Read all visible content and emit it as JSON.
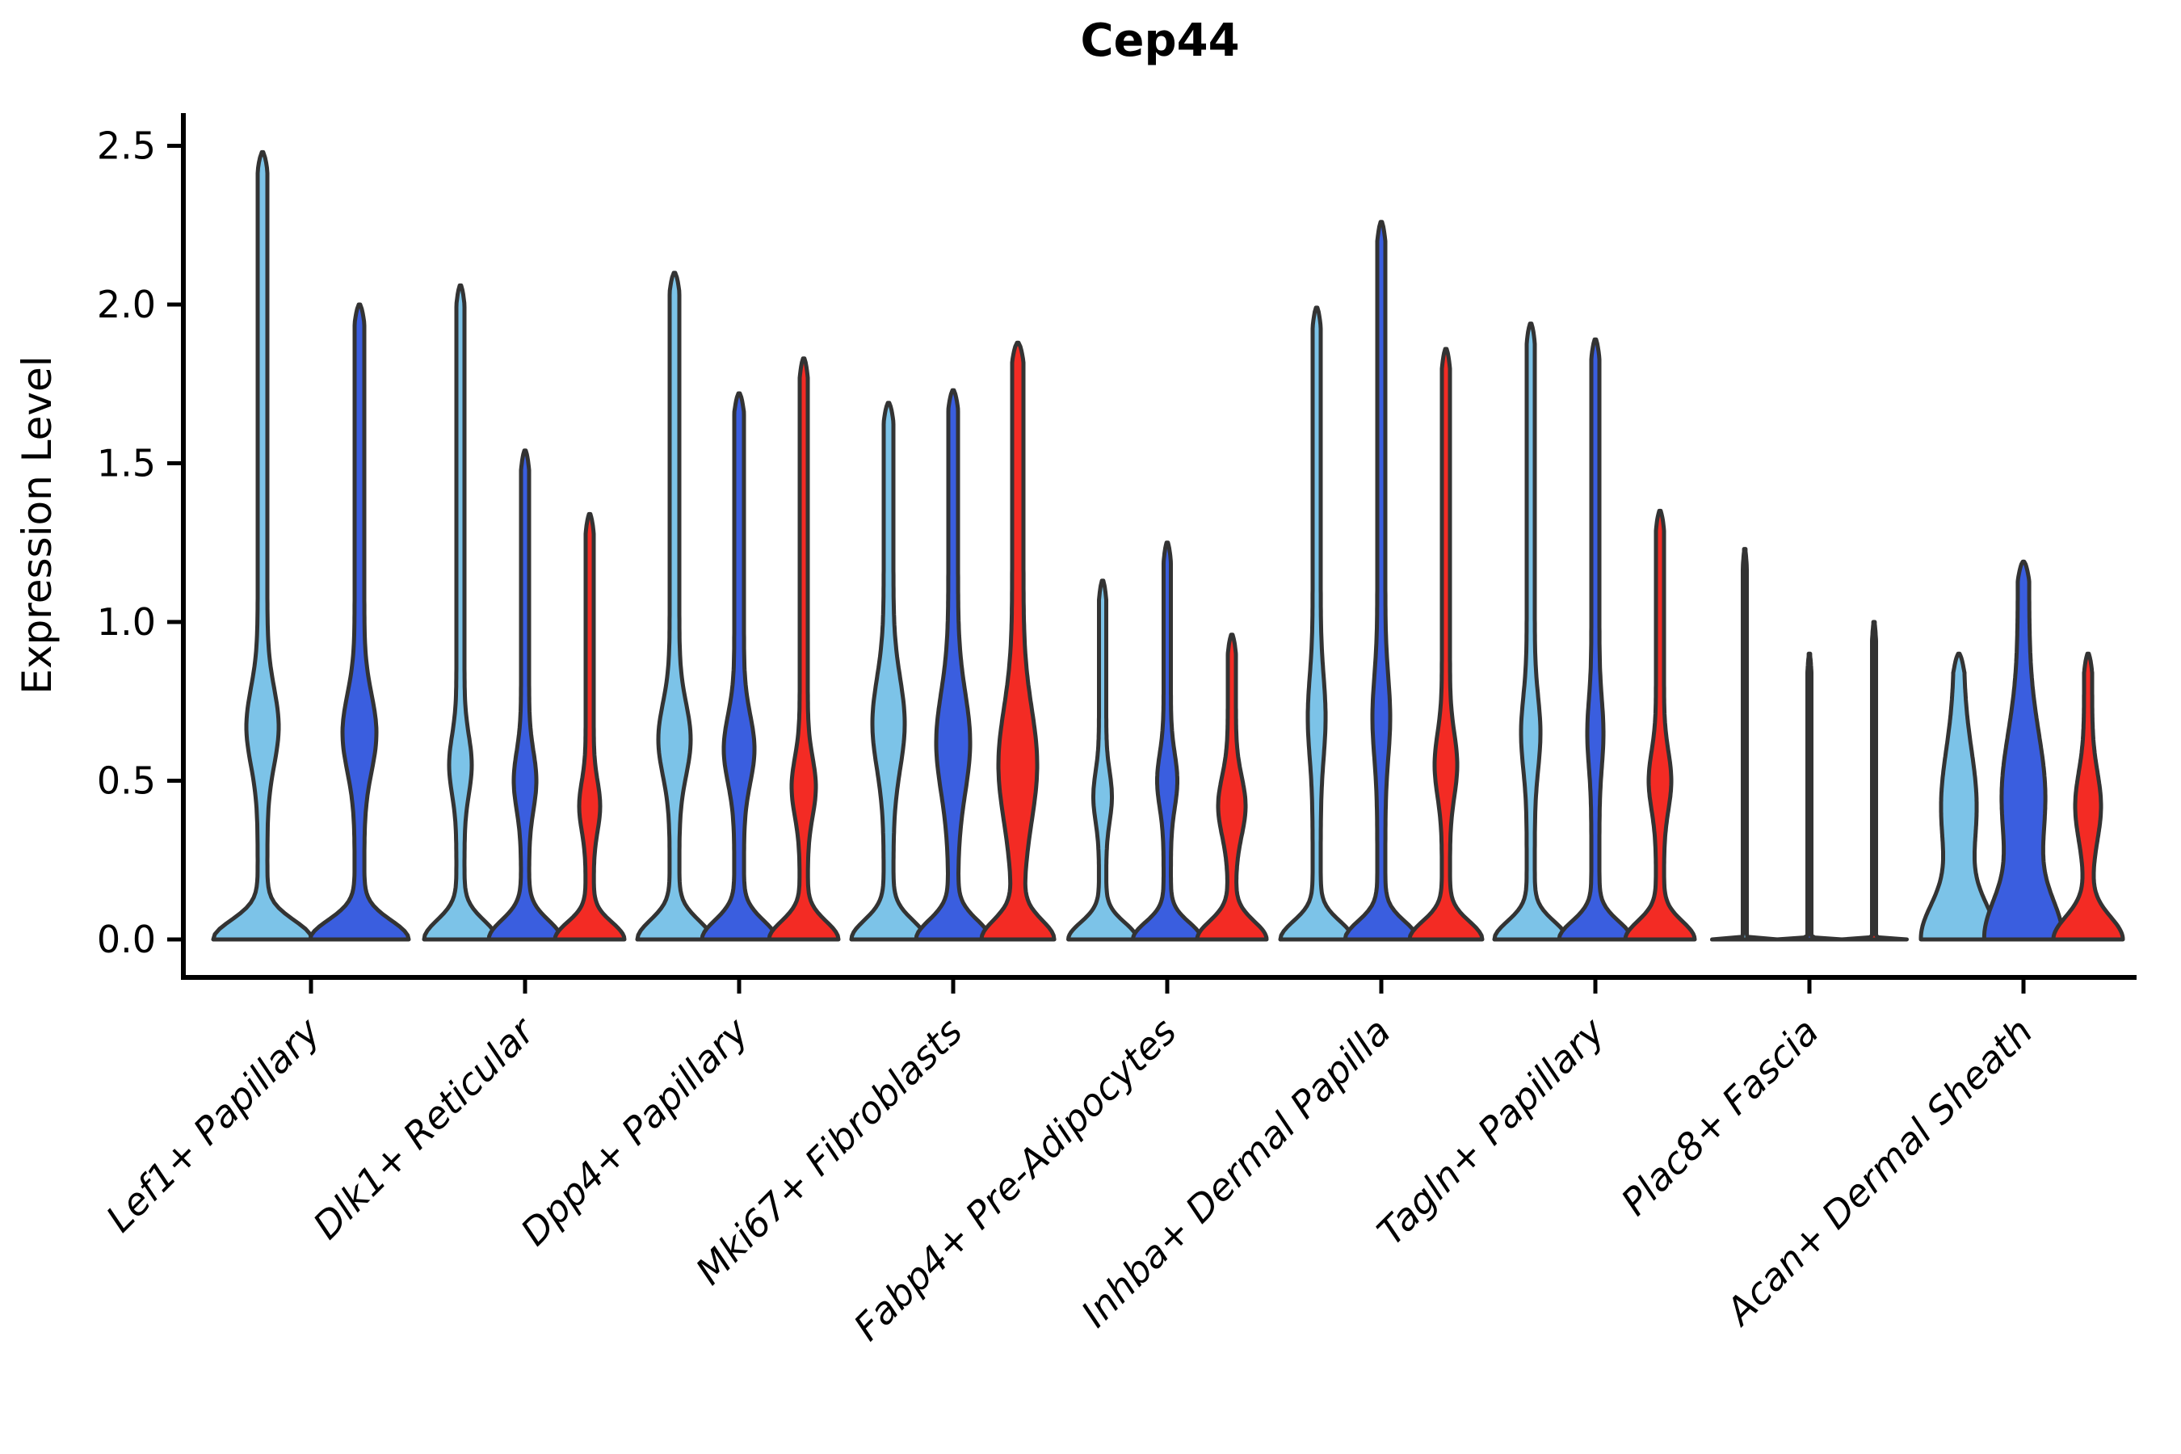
{
  "title": "Cep44",
  "axes": {
    "ylabel": "Expression Level",
    "y_ticks": [
      "0.0",
      "0.5",
      "1.0",
      "1.5",
      "2.0",
      "2.5"
    ],
    "ylim": [
      0,
      2.6
    ]
  },
  "colors": {
    "hues": [
      "#7CC3E8",
      "#3A5EDF",
      "#F32B24"
    ],
    "outline": "#333333",
    "axis": "#000000",
    "background": "#ffffff"
  },
  "chart_data": {
    "type": "violin",
    "title": "Cep44",
    "ylabel": "Expression Level",
    "ylim": [
      0,
      2.6
    ],
    "grid": false,
    "legend": null,
    "categories": [
      "Lef1+ Papillary",
      "Dlk1+ Reticular",
      "Dpp4+ Papillary",
      "Mki67+ Fibroblasts",
      "Fabp4+ Pre-Adipocytes",
      "Inhba+ Dermal Papilla",
      "Tagln+ Papillary",
      "Plac8+ Fascia",
      "Acan+ Dermal Sheath"
    ],
    "series": [
      {
        "name": "hue-1-light-blue",
        "color": "#7CC3E8",
        "max_expression": [
          2.48,
          2.06,
          2.1,
          1.69,
          1.13,
          1.99,
          1.94,
          1.23,
          0.9
        ]
      },
      {
        "name": "hue-2-royal-blue",
        "color": "#3A5EDF",
        "max_expression": [
          2.0,
          1.54,
          1.72,
          1.73,
          1.25,
          2.26,
          1.89,
          0.9,
          1.19
        ]
      },
      {
        "name": "hue-3-red",
        "color": "#F32B24",
        "max_expression": [
          null,
          1.34,
          1.83,
          1.88,
          0.96,
          1.86,
          1.35,
          1.0,
          0.9
        ]
      }
    ],
    "violins": [
      {
        "cat": 0,
        "hue": 0,
        "max": 2.48,
        "base": 55,
        "base_s": 0.085,
        "stem": 6,
        "bulge_c": 0.67,
        "bulge_w": 14,
        "bulge_s": 0.17
      },
      {
        "cat": 0,
        "hue": 1,
        "max": 2.0,
        "base": 55,
        "base_s": 0.085,
        "stem": 6,
        "bulge_c": 0.65,
        "bulge_w": 15,
        "bulge_s": 0.17
      },
      {
        "cat": 1,
        "hue": 0,
        "max": 2.06,
        "base": 40,
        "base_s": 0.085,
        "stem": 5,
        "bulge_c": 0.55,
        "bulge_w": 9,
        "bulge_s": 0.13
      },
      {
        "cat": 1,
        "hue": 1,
        "max": 1.54,
        "base": 40,
        "base_s": 0.085,
        "stem": 5,
        "bulge_c": 0.5,
        "bulge_w": 9,
        "bulge_s": 0.13
      },
      {
        "cat": 1,
        "hue": 2,
        "max": 1.34,
        "base": 38,
        "base_s": 0.075,
        "stem": 5,
        "bulge_c": 0.42,
        "bulge_w": 8,
        "bulge_s": 0.11
      },
      {
        "cat": 2,
        "hue": 0,
        "max": 2.1,
        "base": 40,
        "base_s": 0.085,
        "stem": 6,
        "bulge_c": 0.63,
        "bulge_w": 14,
        "bulge_s": 0.16
      },
      {
        "cat": 2,
        "hue": 1,
        "max": 1.72,
        "base": 40,
        "base_s": 0.085,
        "stem": 6,
        "bulge_c": 0.6,
        "bulge_w": 13,
        "bulge_s": 0.15
      },
      {
        "cat": 2,
        "hue": 2,
        "max": 1.83,
        "base": 38,
        "base_s": 0.08,
        "stem": 5,
        "bulge_c": 0.48,
        "bulge_w": 10,
        "bulge_s": 0.13
      },
      {
        "cat": 3,
        "hue": 0,
        "max": 1.69,
        "base": 40,
        "base_s": 0.085,
        "stem": 6,
        "bulge_c": 0.68,
        "bulge_w": 14,
        "bulge_s": 0.2
      },
      {
        "cat": 3,
        "hue": 1,
        "max": 1.73,
        "base": 40,
        "base_s": 0.085,
        "stem": 6,
        "bulge_c": 0.62,
        "bulge_w": 15,
        "bulge_s": 0.22
      },
      {
        "cat": 3,
        "hue": 2,
        "max": 1.88,
        "base": 38,
        "base_s": 0.085,
        "stem": 7,
        "bulge_c": 0.55,
        "bulge_w": 17,
        "bulge_s": 0.25
      },
      {
        "cat": 4,
        "hue": 0,
        "max": 1.13,
        "base": 38,
        "base_s": 0.075,
        "stem": 4.5,
        "bulge_c": 0.45,
        "bulge_w": 7,
        "bulge_s": 0.11
      },
      {
        "cat": 4,
        "hue": 1,
        "max": 1.25,
        "base": 38,
        "base_s": 0.075,
        "stem": 4.5,
        "bulge_c": 0.5,
        "bulge_w": 8,
        "bulge_s": 0.12
      },
      {
        "cat": 4,
        "hue": 2,
        "max": 0.96,
        "base": 38,
        "base_s": 0.08,
        "stem": 5,
        "bulge_c": 0.42,
        "bulge_w": 12,
        "bulge_s": 0.13
      },
      {
        "cat": 5,
        "hue": 0,
        "max": 1.99,
        "base": 40,
        "base_s": 0.08,
        "stem": 5,
        "bulge_c": 0.7,
        "bulge_w": 6,
        "bulge_s": 0.18
      },
      {
        "cat": 5,
        "hue": 1,
        "max": 2.26,
        "base": 40,
        "base_s": 0.08,
        "stem": 5,
        "bulge_c": 0.7,
        "bulge_w": 6,
        "bulge_s": 0.18
      },
      {
        "cat": 5,
        "hue": 2,
        "max": 1.86,
        "base": 40,
        "base_s": 0.08,
        "stem": 5,
        "bulge_c": 0.55,
        "bulge_w": 9,
        "bulge_s": 0.14
      },
      {
        "cat": 6,
        "hue": 0,
        "max": 1.94,
        "base": 40,
        "base_s": 0.08,
        "stem": 5,
        "bulge_c": 0.65,
        "bulge_w": 7,
        "bulge_s": 0.16
      },
      {
        "cat": 6,
        "hue": 1,
        "max": 1.89,
        "base": 40,
        "base_s": 0.08,
        "stem": 5,
        "bulge_c": 0.65,
        "bulge_w": 5,
        "bulge_s": 0.15
      },
      {
        "cat": 6,
        "hue": 2,
        "max": 1.35,
        "base": 38,
        "base_s": 0.08,
        "stem": 5,
        "bulge_c": 0.5,
        "bulge_w": 9,
        "bulge_s": 0.13
      },
      {
        "cat": 7,
        "hue": 0,
        "max": 1.23,
        "base": 38,
        "base_s": 0.004,
        "stem": 2.5,
        "bulge_c": 0,
        "bulge_w": 0,
        "bulge_s": 1
      },
      {
        "cat": 7,
        "hue": 1,
        "max": 0.9,
        "base": 38,
        "base_s": 0.004,
        "stem": 2.5,
        "bulge_c": 0,
        "bulge_w": 0,
        "bulge_s": 1
      },
      {
        "cat": 7,
        "hue": 2,
        "max": 1.0,
        "base": 38,
        "base_s": 0.004,
        "stem": 2.5,
        "bulge_c": 0,
        "bulge_w": 0,
        "bulge_s": 1
      },
      {
        "cat": 8,
        "hue": 0,
        "max": 0.9,
        "base": 40,
        "base_s": 0.16,
        "stem": 6,
        "bulge_c": 0.42,
        "bulge_w": 16,
        "bulge_s": 0.25
      },
      {
        "cat": 8,
        "hue": 1,
        "max": 1.19,
        "base": 40,
        "base_s": 0.18,
        "stem": 7,
        "bulge_c": 0.45,
        "bulge_w": 20,
        "bulge_s": 0.28
      },
      {
        "cat": 8,
        "hue": 2,
        "max": 0.9,
        "base": 38,
        "base_s": 0.1,
        "stem": 5,
        "bulge_c": 0.42,
        "bulge_w": 11,
        "bulge_s": 0.15
      }
    ]
  }
}
